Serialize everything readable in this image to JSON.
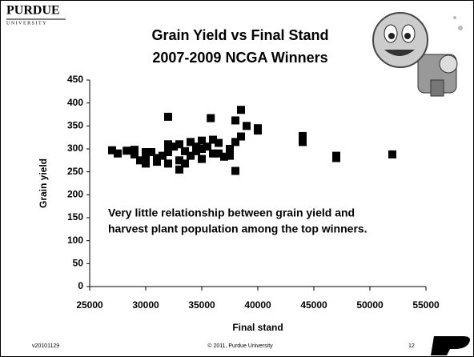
{
  "header": {
    "logo": "PURDUE",
    "logo_sub": "UNIVERSITY"
  },
  "chart_data": {
    "type": "scatter",
    "title": "Grain Yield vs Final Stand",
    "subtitle": "2007-2009 NCGA Winners",
    "x_label": "Final stand",
    "y_label": "Grain yield",
    "annotations": [
      "Very little relationship between grain yield and",
      "harvest plant population among the top winners."
    ],
    "color": "#000000",
    "x": [
      27000,
      27500,
      28300,
      29000,
      29000,
      29500,
      30000,
      30000,
      30000,
      30500,
      31000,
      31000,
      31500,
      32000,
      32000,
      32000,
      32000,
      32500,
      33000,
      33000,
      33000,
      33500,
      33500,
      34000,
      34000,
      34500,
      34500,
      35000,
      35000,
      35000,
      35500,
      35800,
      36000,
      36000,
      36500,
      36500,
      37000,
      37500,
      37500,
      38000,
      38000,
      38000,
      38500,
      38500,
      39000,
      40000,
      40000,
      44000,
      44000,
      47000,
      47000,
      52000
    ],
    "values": [
      297,
      290,
      296,
      298,
      288,
      275,
      293,
      283,
      268,
      293,
      280,
      272,
      285,
      370,
      310,
      268,
      293,
      305,
      275,
      255,
      310,
      295,
      268,
      315,
      285,
      305,
      295,
      318,
      278,
      300,
      305,
      367,
      320,
      290,
      313,
      290,
      283,
      300,
      285,
      252,
      315,
      362,
      385,
      327,
      350,
      345,
      340,
      328,
      315,
      285,
      280,
      288
    ],
    "xlim": [
      25000,
      55000
    ],
    "ylim": [
      0,
      450
    ],
    "xticks": [
      25000,
      30000,
      35000,
      40000,
      45000,
      50000,
      55000
    ],
    "yticks": [
      0,
      50,
      100,
      150,
      200,
      250,
      300,
      350,
      400,
      450
    ],
    "grid": false
  },
  "footer": {
    "version": "v20101129",
    "copyright": "© 2011, Purdue University",
    "page": "12"
  }
}
